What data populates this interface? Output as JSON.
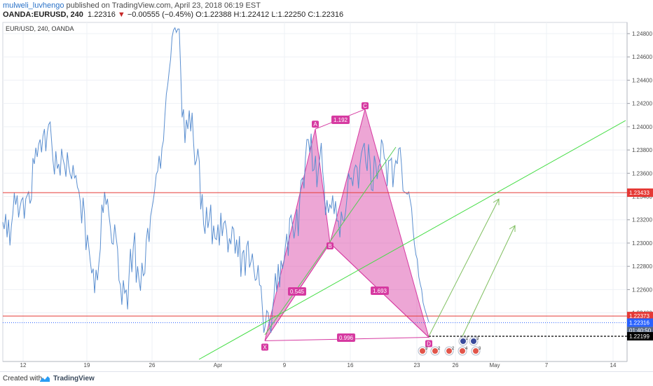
{
  "header": {
    "author": "mulweli_luvhengo",
    "published_text": " published on TradingView.com, April 23, 2018 06:19 EST",
    "symbol": "OANDA:EURUSD, 240",
    "last": "1.22316",
    "change_arrow": "▼",
    "change": "−0.00555 (−0.45%)",
    "ohlc": "O:1.22388 H:1.22412 L:1.22250 C:1.22316"
  },
  "chart_data": {
    "type": "line",
    "title": "EUR/USD, 240, OANDA",
    "x_tick_labels": [
      "12",
      "19",
      "26",
      "Apr",
      "9",
      "16",
      "23",
      "26",
      "May",
      "7",
      "14"
    ],
    "y_ticks": [
      1.224,
      1.226,
      1.228,
      1.23,
      1.232,
      1.234,
      1.236,
      1.238,
      1.24,
      1.242,
      1.244,
      1.246,
      1.248
    ],
    "y_tick_labels": [
      "1.22400",
      "1.22600",
      "1.22800",
      "1.23000",
      "1.23200",
      "1.23400",
      "1.23600",
      "1.23800",
      "1.24000",
      "1.24200",
      "1.24400",
      "1.24600",
      "1.24800"
    ],
    "ylim": [
      1.2208,
      1.2502
    ],
    "series": [
      {
        "values": [
          1.2318,
          1.2312,
          1.2325,
          1.2305,
          1.232,
          1.2298,
          1.2315,
          1.2325,
          1.2343,
          1.2333,
          1.2341,
          1.2322,
          1.2331,
          1.2337,
          1.2339,
          1.2321,
          1.2338,
          1.2341,
          1.2344,
          1.2334,
          1.2338,
          1.2373,
          1.2368,
          1.2382,
          1.2374,
          1.2385,
          1.2389,
          1.2378,
          1.2392,
          1.2398,
          1.2379,
          1.2395,
          1.2402,
          1.2404,
          1.2388,
          1.2371,
          1.2359,
          1.2379,
          1.2364,
          1.2368,
          1.2358,
          1.2381,
          1.2372,
          1.2367,
          1.2357,
          1.2378,
          1.2366,
          1.2359,
          1.2355,
          1.2367,
          1.2356,
          1.2358,
          1.2348,
          1.2345,
          1.2336,
          1.2317,
          1.2339,
          1.2325,
          1.2294,
          1.2307,
          1.2296,
          1.2284,
          1.2274,
          1.2278,
          1.2257,
          1.2277,
          1.2268,
          1.2283,
          1.2295,
          1.2333,
          1.2326,
          1.2344,
          1.2333,
          1.2338,
          1.2324,
          1.2314,
          1.23,
          1.2299,
          1.2316,
          1.2305,
          1.2295,
          1.2268,
          1.2264,
          1.2247,
          1.2268,
          1.2257,
          1.226,
          1.2243,
          1.2271,
          1.2295,
          1.2275,
          1.2297,
          1.2309,
          1.2266,
          1.228,
          1.2268,
          1.2259,
          1.2283,
          1.2272,
          1.2274,
          1.2302,
          1.2313,
          1.2301,
          1.2323,
          1.233,
          1.2337,
          1.2347,
          1.2359,
          1.2362,
          1.2375,
          1.2364,
          1.2382,
          1.2388,
          1.2409,
          1.2428,
          1.2436,
          1.2448,
          1.2458,
          1.2477,
          1.2483,
          1.2485,
          1.2481,
          1.2484,
          1.2484,
          1.245,
          1.2408,
          1.2415,
          1.2386,
          1.2406,
          1.2398,
          1.2414,
          1.2396,
          1.2412,
          1.2386,
          1.2367,
          1.2371,
          1.2381,
          1.237,
          1.2329,
          1.2342,
          1.2316,
          1.2308,
          1.2331,
          1.2313,
          1.2321,
          1.2333,
          1.2299,
          1.2315,
          1.2304,
          1.2303,
          1.2316,
          1.2298,
          1.2326,
          1.2306,
          1.2317,
          1.2319,
          1.2311,
          1.2292,
          1.2304,
          1.2299,
          1.2314,
          1.2312,
          1.2291,
          1.2303,
          1.2288,
          1.2306,
          1.2271,
          1.2291,
          1.2294,
          1.2272,
          1.2297,
          1.2302,
          1.2279,
          1.2284,
          1.2291,
          1.2278,
          1.2268,
          1.2269,
          1.2281,
          1.2264,
          1.2263,
          1.2244,
          1.2223,
          1.2229,
          1.2242,
          1.224,
          1.2229,
          1.2223,
          1.2243,
          1.2253,
          1.2274,
          1.2258,
          1.2282,
          1.2262,
          1.2285,
          1.2278,
          1.2284,
          1.2297,
          1.2308,
          1.2289,
          1.2321,
          1.2324,
          1.2315,
          1.2304,
          1.2313,
          1.2329,
          1.2306,
          1.2337,
          1.2354,
          1.2356,
          1.2347,
          1.2373,
          1.2389,
          1.2389,
          1.2378,
          1.2394,
          1.2362,
          1.2363,
          1.2375,
          1.2348,
          1.2363,
          1.2373,
          1.2386,
          1.2362,
          1.2348,
          1.2324,
          1.2337,
          1.2326,
          1.2333,
          1.233,
          1.2341,
          1.2325,
          1.2336,
          1.2319,
          1.2319,
          1.2305,
          1.2327,
          1.232,
          1.2319,
          1.2327,
          1.2339,
          1.236,
          1.2355,
          1.2356,
          1.2349,
          1.2363,
          1.2367,
          1.2365,
          1.2347,
          1.2367,
          1.2377,
          1.2382,
          1.2386,
          1.237,
          1.2362,
          1.2385,
          1.237,
          1.2346,
          1.2345,
          1.2375,
          1.2368,
          1.2355,
          1.2366,
          1.2368,
          1.2389,
          1.2385,
          1.2373,
          1.2371,
          1.2349,
          1.2371,
          1.2371,
          1.2373,
          1.2348,
          1.2364,
          1.2371,
          1.2368,
          1.2381,
          1.2382,
          1.2367,
          1.2345,
          1.2344,
          1.2343,
          1.2342,
          1.2344,
          1.2337,
          1.233,
          1.2312,
          1.2299,
          1.229,
          1.2286,
          1.2271,
          1.2265,
          1.226,
          1.2249,
          1.2244,
          1.224,
          1.2236,
          1.2232
        ]
      }
    ],
    "price_lines": [
      {
        "value": 1.23433,
        "label": "1.23433",
        "color": "#e53935"
      },
      {
        "value": 1.22373,
        "label": "1.22373",
        "color": "#e53935"
      }
    ],
    "last_price": {
      "value": 1.22316,
      "label": "1.22316",
      "color": "#2962ff"
    },
    "countdown": "01:40:50",
    "dashed_level": {
      "value": 1.22199,
      "label": "1.22199",
      "color": "#000000"
    },
    "pattern": {
      "name": "bat",
      "color": "#d63aa1",
      "points": [
        {
          "label": "X",
          "value": 1.2216
        },
        {
          "label": "A",
          "value": 1.2398
        },
        {
          "label": "B",
          "value": 1.23
        },
        {
          "label": "C",
          "value": 1.2415
        },
        {
          "label": "D",
          "value": 1.2219
        }
      ],
      "ratios": [
        "0.545",
        "1.192",
        "1.693",
        "0.996"
      ]
    },
    "grid": true
  },
  "events": {
    "badge_counts": [
      "3",
      "2",
      "2",
      "4",
      "3",
      "2",
      "3"
    ]
  },
  "footer": {
    "created": "Created with",
    "brand": "TradingView"
  }
}
